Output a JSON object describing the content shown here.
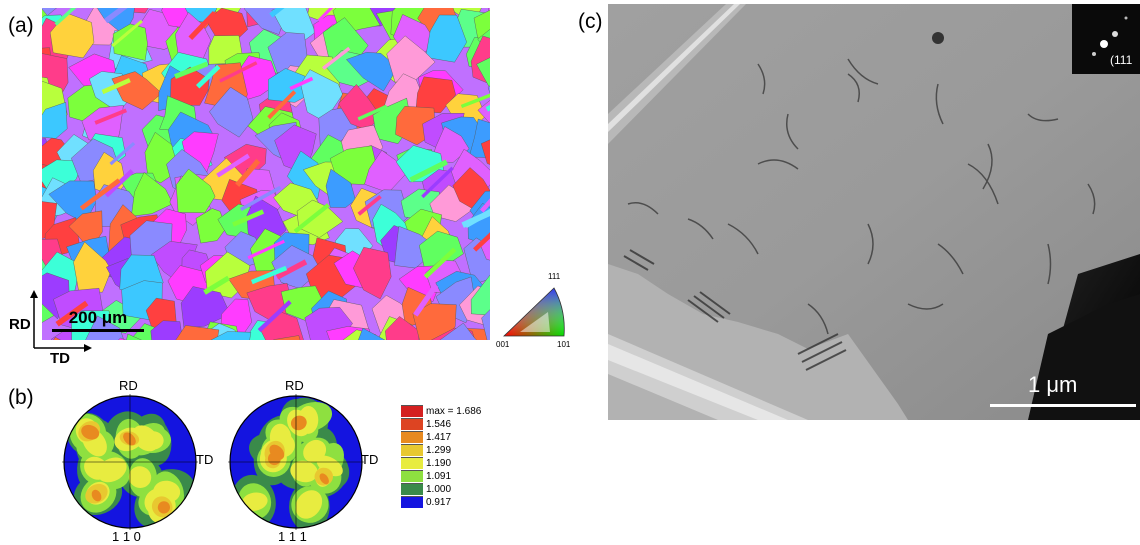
{
  "panels": {
    "a": {
      "label": "(a)",
      "scale_bar": "200 μm",
      "axis_rd": "RD",
      "axis_td": "TD",
      "ipf_key": {
        "top": "111",
        "left": "001",
        "right": "101"
      }
    },
    "b": {
      "label": "(b)",
      "figures": [
        {
          "top_label": "RD",
          "side_label": "TD",
          "bottom_label": "1 1 0"
        },
        {
          "top_label": "RD",
          "side_label": "TD",
          "bottom_label": "1 1 1"
        }
      ],
      "legend": [
        {
          "value": "max = 1.686",
          "color": "#d42020"
        },
        {
          "value": "1.546",
          "color": "#dd4422"
        },
        {
          "value": "1.417",
          "color": "#e88a20"
        },
        {
          "value": "1.299",
          "color": "#e8c830"
        },
        {
          "value": "1.190",
          "color": "#e8ec40"
        },
        {
          "value": "1.091",
          "color": "#8ee040"
        },
        {
          "value": "1.000",
          "color": "#3a8a4a"
        },
        {
          "value": "0.917",
          "color": "#1414e0"
        }
      ]
    },
    "c": {
      "label": "(c)",
      "scale_bar": "1 μm",
      "inset_label": "(111"
    }
  }
}
